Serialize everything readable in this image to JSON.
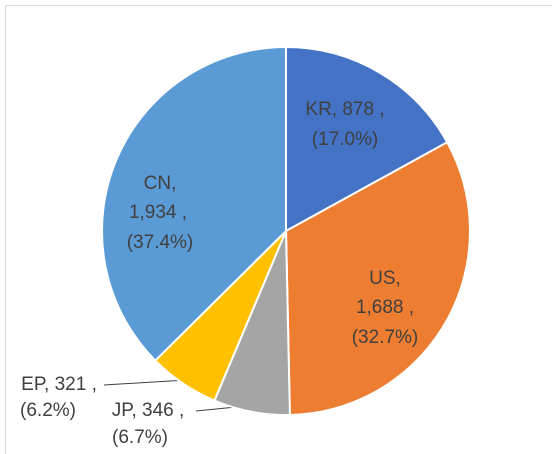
{
  "chart_data": {
    "type": "pie",
    "categories": [
      "KR",
      "US",
      "JP",
      "EP",
      "CN"
    ],
    "values": [
      878,
      1688,
      346,
      321,
      1934
    ],
    "value_labels": [
      [
        "KR, 878 ,",
        "(17.0%)"
      ],
      [
        "US,",
        "1,688 ,",
        "(32.7%)"
      ],
      [
        "JP, 346 ,",
        "(6.7%)"
      ],
      [
        "EP, 321 ,",
        "(6.2%)"
      ],
      [
        "CN,",
        "1,934 ,",
        "(37.4%)"
      ]
    ],
    "colors": [
      "#4472c4",
      "#ed7d31",
      "#a5a5a5",
      "#ffc000",
      "#5b9bd5"
    ]
  }
}
